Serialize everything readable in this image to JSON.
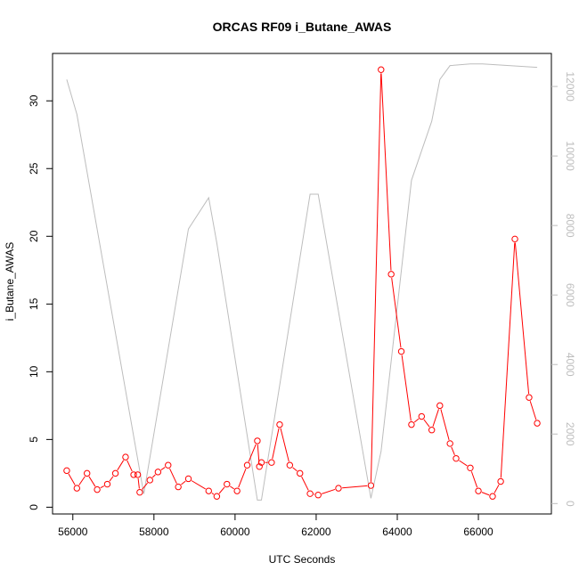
{
  "chart_data": {
    "type": "line",
    "title": "ORCAS RF09 i_Butane_AWAS",
    "xlabel": "UTC Seconds",
    "ylabel": "i_Butane_AWAS",
    "xlim": [
      55500,
      67800
    ],
    "ylim": [
      -0.5,
      33.5
    ],
    "y2lim": [
      -300,
      12950
    ],
    "xticks": [
      56000,
      58000,
      60000,
      62000,
      64000,
      66000
    ],
    "yticks": [
      0,
      5,
      10,
      15,
      20,
      25,
      30
    ],
    "y2ticks": [
      0,
      2000,
      4000,
      6000,
      8000,
      10000,
      12000
    ],
    "grid": false,
    "colors": {
      "primary": "#ff0000",
      "secondary": "#bdbdbd"
    },
    "series": [
      {
        "axis": "left",
        "style": "line-with-open-circles",
        "x": [
          55850,
          56100,
          56350,
          56600,
          56850,
          57050,
          57300,
          57500,
          57600,
          57650,
          57900,
          58100,
          58350,
          58600,
          58850,
          59350,
          59550,
          59800,
          60050,
          60300,
          60550,
          60600,
          60650,
          60900,
          61100,
          61350,
          61600,
          61850,
          62050,
          62550,
          63350,
          63600,
          63850,
          64100,
          64350,
          64600,
          64850,
          65050,
          65300,
          65450,
          65800,
          66000,
          66350,
          66550,
          66900,
          67250,
          67450
        ],
        "y": [
          2.7,
          1.4,
          2.5,
          1.3,
          1.7,
          2.5,
          3.7,
          2.4,
          2.4,
          1.1,
          2.0,
          2.6,
          3.1,
          1.5,
          2.1,
          1.2,
          0.8,
          1.7,
          1.2,
          3.1,
          4.9,
          3.0,
          3.3,
          3.3,
          6.1,
          3.1,
          2.5,
          1.0,
          0.9,
          1.4,
          1.6,
          32.3,
          17.2,
          11.5,
          6.1,
          6.7,
          5.7,
          7.5,
          4.7,
          3.6,
          2.9,
          1.2,
          0.8,
          1.9,
          19.8,
          8.1,
          6.2
        ]
      },
      {
        "axis": "right",
        "style": "line",
        "x": [
          55850,
          56100,
          57750,
          58850,
          59350,
          59550,
          60550,
          60650,
          61850,
          62050,
          63350,
          63600,
          64350,
          64850,
          65050,
          65300,
          65800,
          66100,
          67450
        ],
        "y": [
          12200,
          11200,
          280,
          7900,
          8800,
          7500,
          100,
          100,
          8900,
          8900,
          150,
          1500,
          9300,
          11000,
          12200,
          12600,
          12650,
          12650,
          12550
        ]
      }
    ]
  }
}
